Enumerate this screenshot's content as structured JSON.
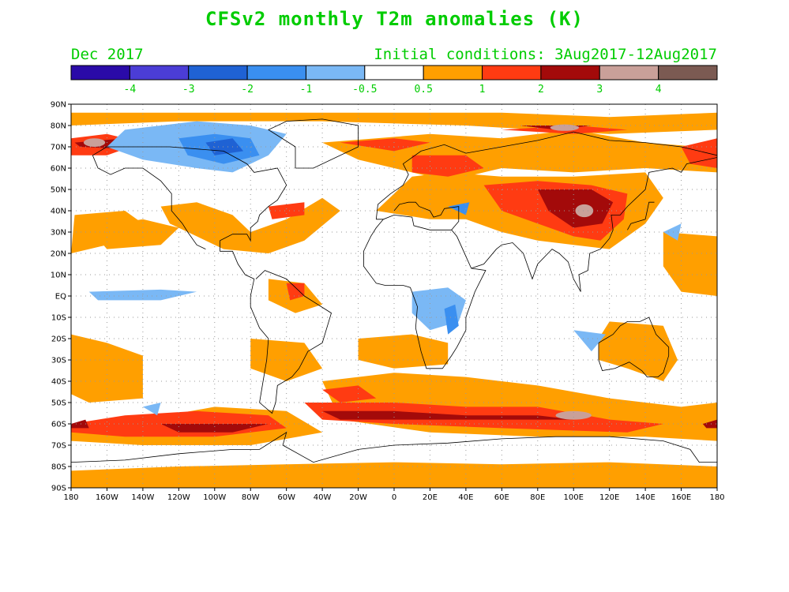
{
  "title": "CFSv2 monthly T2m anomalies (K)",
  "month": "Dec 2017",
  "initial_conditions": "Initial conditions: 3Aug2017-12Aug2017",
  "legend": {
    "colors": [
      "#2a0aa8",
      "#4b3dd6",
      "#1f62d4",
      "#3a8ff0",
      "#7ab8f5",
      "#ffffff",
      "#ff9f00",
      "#ff3b12",
      "#a30a0a",
      "#c9a099",
      "#7b5a52"
    ],
    "labels": [
      "-4",
      "-3",
      "-2",
      "-1",
      "-0.5",
      "0.5",
      "1",
      "2",
      "3",
      "4"
    ],
    "label_color": "#00cc00"
  },
  "axes": {
    "lat_labels": [
      "90N",
      "80N",
      "70N",
      "60N",
      "50N",
      "40N",
      "30N",
      "20N",
      "10N",
      "EQ",
      "10S",
      "20S",
      "30S",
      "40S",
      "50S",
      "60S",
      "70S",
      "80S",
      "90S"
    ],
    "lon_labels": [
      "180",
      "160W",
      "140W",
      "120W",
      "100W",
      "80W",
      "60W",
      "40W",
      "20W",
      "0",
      "20E",
      "40E",
      "60E",
      "80E",
      "100E",
      "120E",
      "140E",
      "160E",
      "180"
    ]
  },
  "map_colors": {
    "warm1": "#ff9f00",
    "warm2": "#ff3b12",
    "warm3": "#a30a0a",
    "warm4": "#c9a099",
    "cold1": "#7ab8f5",
    "cold2": "#3a8ff0",
    "cold3": "#1f62d4",
    "coast": "#000000",
    "grid": "#9a9a9a"
  }
}
